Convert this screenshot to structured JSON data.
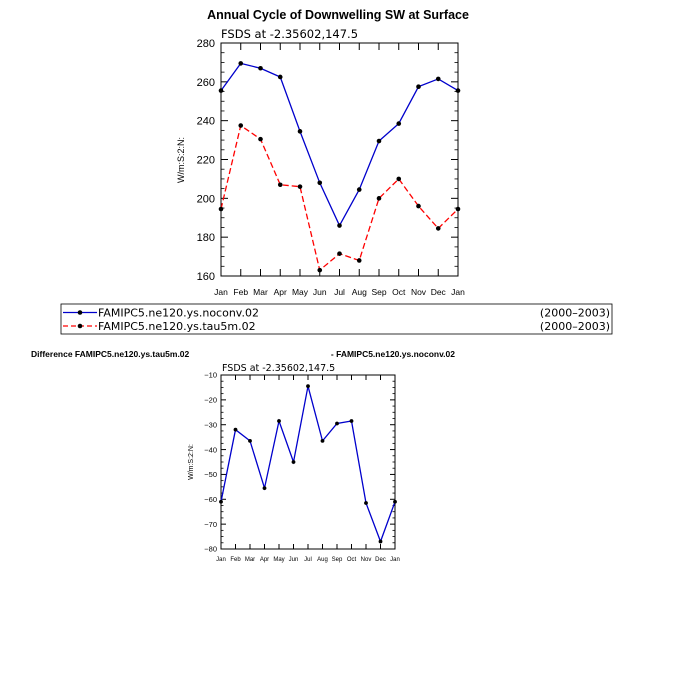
{
  "chart_data": [
    {
      "type": "line",
      "title": "Annual Cycle of Downwelling SW at Surface",
      "subtitle": "FSDS at -2.35602,147.5",
      "ylabel": "W/m:S:2:N:",
      "ylim": [
        160,
        280
      ],
      "yticks": [
        "160",
        "180",
        "200",
        "220",
        "240",
        "260",
        "280"
      ],
      "categories": [
        "Jan",
        "Feb",
        "Mar",
        "Apr",
        "May",
        "Jun",
        "Jul",
        "Aug",
        "Sep",
        "Oct",
        "Nov",
        "Dec",
        "Jan"
      ],
      "series": [
        {
          "name": "FAMIPC5.ne120.ys.noconv.02",
          "period": "(2000–2003)",
          "color": "#0000cc",
          "dash": "solid",
          "values": [
            255.5,
            269.5,
            267,
            262.5,
            234.5,
            208,
            186,
            204.5,
            229.5,
            238.5,
            257.5,
            261.5,
            255.5
          ]
        },
        {
          "name": "FAMIPC5.ne120.ys.tau5m.02",
          "period": "(2000–2003)",
          "color": "#ff0000",
          "dash": "dashed",
          "values": [
            194.5,
            237.5,
            230.5,
            207,
            206,
            163,
            171.5,
            168,
            200,
            210,
            196,
            184.5,
            194.5
          ]
        }
      ],
      "grid": false
    },
    {
      "type": "line",
      "title_left": "Difference FAMIPC5.ne120.ys.tau5m.02",
      "title_right": "- FAMIPC5.ne120.ys.noconv.02",
      "subtitle": "FSDS at -2.35602,147.5",
      "ylabel": "W/m:S:2:N:",
      "ylim": [
        -80,
        -10
      ],
      "yticks": [
        "−80",
        "−70",
        "−60",
        "−50",
        "−40",
        "−30",
        "−20",
        "−10"
      ],
      "categories": [
        "Jan",
        "Feb",
        "Mar",
        "Apr",
        "May",
        "Jun",
        "Jul",
        "Aug",
        "Sep",
        "Oct",
        "Nov",
        "Dec",
        "Jan"
      ],
      "series": [
        {
          "color": "#0000cc",
          "values": [
            -61,
            -32,
            -36.5,
            -55.5,
            -28.5,
            -45,
            -14.5,
            -36.5,
            -29.5,
            -28.5,
            -61.5,
            -77,
            -61
          ]
        }
      ],
      "grid": false
    }
  ]
}
